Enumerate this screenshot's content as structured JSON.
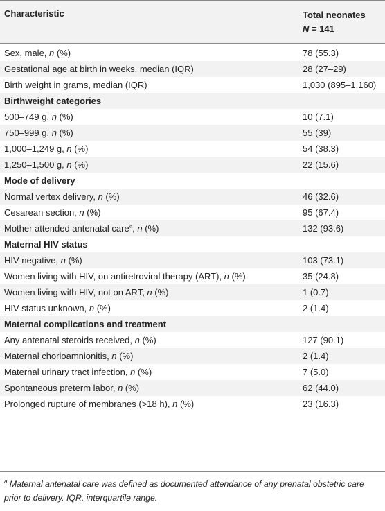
{
  "header": {
    "col1": "Characteristic",
    "col2_line1": "Total neonates",
    "col2_n": "N",
    "col2_eq": " = 141"
  },
  "rows": [
    {
      "label": "Sex, male, ",
      "n": "n",
      "suffix": " (%)",
      "value": "78 (55.3)"
    },
    {
      "label": "Gestational age at birth in weeks, median (IQR)",
      "value": "28 (27–29)"
    },
    {
      "label": "Birth weight in grams, median (IQR)",
      "value": "1,030 (895–1,160)"
    },
    {
      "section": "Birthweight categories"
    },
    {
      "label": "500–749 g, ",
      "n": "n",
      "suffix": " (%)",
      "value": "10 (7.1)"
    },
    {
      "label": "750–999 g, ",
      "n": "n",
      "suffix": " (%)",
      "value": "55 (39)"
    },
    {
      "label": "1,000–1,249 g, ",
      "n": "n",
      "suffix": " (%)",
      "value": "54 (38.3)"
    },
    {
      "label": "1,250–1,500 g, ",
      "n": "n",
      "suffix": " (%)",
      "value": "22 (15.6)"
    },
    {
      "section": "Mode of delivery"
    },
    {
      "label": "Normal vertex delivery, ",
      "n": "n",
      "suffix": " (%)",
      "value": "46 (32.6)"
    },
    {
      "label": "Cesarean section, ",
      "n": "n",
      "suffix": " (%)",
      "value": "95 (67.4)"
    },
    {
      "label": "Mother attended antenatal care",
      "sup": "a",
      "label2": ", ",
      "n": "n",
      "suffix": " (%)",
      "value": "132 (93.6)"
    },
    {
      "section": "Maternal HIV status"
    },
    {
      "label": "HIV-negative, ",
      "n": "n",
      "suffix": " (%)",
      "value": "103 (73.1)"
    },
    {
      "label": "Women living with HIV, on antiretroviral therapy (ART), ",
      "n": "n",
      "suffix": " (%)",
      "value": "35 (24.8)"
    },
    {
      "label": "Women living with HIV, not on ART, ",
      "n": "n",
      "suffix": " (%)",
      "value": "1 (0.7)"
    },
    {
      "label": "HIV status unknown, ",
      "n": "n",
      "suffix": " (%)",
      "value": "2 (1.4)"
    },
    {
      "section": "Maternal complications and treatment"
    },
    {
      "label": "Any antenatal steroids received, ",
      "n": "n",
      "suffix": " (%)",
      "value": "127 (90.1)"
    },
    {
      "label": "Maternal chorioamnionitis, ",
      "n": "n",
      "suffix": " (%)",
      "value": "2 (1.4)"
    },
    {
      "label": "Maternal urinary tract infection, ",
      "n": "n",
      "suffix": " (%)",
      "value": "7 (5.0)"
    },
    {
      "label": "Spontaneous preterm labor, ",
      "n": "n",
      "suffix": " (%)",
      "value": "62 (44.0)"
    },
    {
      "label": "Prolonged rupture of membranes (>18 h), ",
      "n": "n",
      "suffix": " (%)",
      "value": "23 (16.3)"
    }
  ],
  "footnote": {
    "mark": "a",
    "text": " Maternal antenatal care was defined as documented attendance of any prenatal obstetric care prior to delivery. IQR, interquartile range."
  },
  "colors": {
    "shade": "#f2f2f2",
    "text": "#222222",
    "rule": "#888888"
  }
}
